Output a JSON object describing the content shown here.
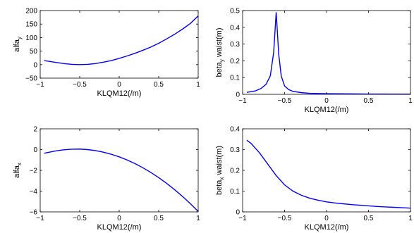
{
  "chart_data": [
    {
      "type": "line",
      "xlabel": "KLQM12(/m)",
      "ylabel_main": "alfa",
      "ylabel_sub": "y",
      "ylabel_suffix": "",
      "xlim": [
        -1,
        1
      ],
      "ylim": [
        -50,
        200
      ],
      "xticks": [
        -1,
        -0.5,
        0,
        0.5,
        1
      ],
      "xtick_labels": [
        "−1",
        "−0.5",
        "0",
        "0.5",
        "1"
      ],
      "yticks": [
        -50,
        0,
        50,
        100,
        150,
        200
      ],
      "ytick_labels": [
        "−50",
        "0",
        "50",
        "100",
        "150",
        "200"
      ],
      "series": [
        {
          "color": "#0000ff",
          "x": [
            -0.95,
            -0.8,
            -0.7,
            -0.6,
            -0.5,
            -0.4,
            -0.3,
            -0.2,
            -0.1,
            0.0,
            0.1,
            0.2,
            0.3,
            0.4,
            0.5,
            0.6,
            0.7,
            0.8,
            0.9,
            1.0
          ],
          "y": [
            15,
            8,
            4,
            1,
            0,
            1,
            4,
            9,
            15,
            23,
            32,
            42,
            53,
            65,
            79,
            95,
            112,
            131,
            152,
            180
          ]
        }
      ]
    },
    {
      "type": "line",
      "xlabel": "KLQM12(/m)",
      "ylabel_main": "beta",
      "ylabel_sub": "y",
      "ylabel_suffix": "waist(m)",
      "xlim": [
        -1,
        1
      ],
      "ylim": [
        0,
        0.5
      ],
      "xticks": [
        -1,
        -0.5,
        0,
        0.5,
        1
      ],
      "xtick_labels": [
        "−1",
        "−0.5",
        "0",
        "0.5",
        "1"
      ],
      "yticks": [
        0,
        0.1,
        0.2,
        0.3,
        0.4,
        0.5
      ],
      "ytick_labels": [
        "0",
        "0.1",
        "0.2",
        "0.3",
        "0.4",
        "0.5"
      ],
      "series": [
        {
          "color": "#0000ff",
          "x": [
            -0.95,
            -0.85,
            -0.78,
            -0.72,
            -0.67,
            -0.63,
            -0.6,
            -0.57,
            -0.54,
            -0.5,
            -0.45,
            -0.4,
            -0.3,
            -0.2,
            0.0,
            0.5,
            1.0
          ],
          "y": [
            0.012,
            0.02,
            0.035,
            0.06,
            0.11,
            0.25,
            0.49,
            0.24,
            0.11,
            0.05,
            0.028,
            0.018,
            0.01,
            0.006,
            0.004,
            0.002,
            0.001
          ]
        }
      ]
    },
    {
      "type": "line",
      "xlabel": "KLQM12(/m)",
      "ylabel_main": "alfa",
      "ylabel_sub": "x",
      "ylabel_suffix": "",
      "xlim": [
        -1,
        1
      ],
      "ylim": [
        -6,
        2
      ],
      "xticks": [
        -1,
        -0.5,
        0,
        0.5,
        1
      ],
      "xtick_labels": [
        "−1",
        "−0.5",
        "0",
        "0.5",
        "1"
      ],
      "yticks": [
        -6,
        -4,
        -2,
        0,
        2
      ],
      "ytick_labels": [
        "−6",
        "−4",
        "−2",
        "0",
        "2"
      ],
      "series": [
        {
          "color": "#0000ff",
          "x": [
            -0.95,
            -0.8,
            -0.7,
            -0.6,
            -0.5,
            -0.4,
            -0.3,
            -0.2,
            -0.1,
            0.0,
            0.1,
            0.2,
            0.3,
            0.4,
            0.5,
            0.6,
            0.7,
            0.8,
            0.9,
            1.0
          ],
          "y": [
            -0.35,
            -0.12,
            -0.02,
            0.04,
            0.05,
            0.0,
            -0.1,
            -0.25,
            -0.45,
            -0.7,
            -1.0,
            -1.35,
            -1.75,
            -2.2,
            -2.7,
            -3.25,
            -3.85,
            -4.5,
            -5.2,
            -5.95
          ]
        }
      ]
    },
    {
      "type": "line",
      "xlabel": "KLQM12(/m)",
      "ylabel_main": "beta",
      "ylabel_sub": "x",
      "ylabel_suffix": "waist(m)",
      "xlim": [
        -1,
        1
      ],
      "ylim": [
        0,
        0.4
      ],
      "xticks": [
        -1,
        -0.5,
        0,
        0.5,
        1
      ],
      "xtick_labels": [
        "−1",
        "−0.5",
        "0",
        "0.5",
        "1"
      ],
      "yticks": [
        0,
        0.1,
        0.2,
        0.3,
        0.4
      ],
      "ytick_labels": [
        "0",
        "0.1",
        "0.2",
        "0.3",
        "0.4"
      ],
      "series": [
        {
          "color": "#0000ff",
          "x": [
            -0.95,
            -0.9,
            -0.8,
            -0.7,
            -0.6,
            -0.5,
            -0.4,
            -0.3,
            -0.2,
            -0.1,
            0.0,
            0.1,
            0.2,
            0.3,
            0.4,
            0.5,
            0.6,
            0.7,
            0.8,
            0.9,
            1.0
          ],
          "y": [
            0.345,
            0.33,
            0.285,
            0.23,
            0.175,
            0.13,
            0.1,
            0.08,
            0.066,
            0.056,
            0.048,
            0.043,
            0.039,
            0.035,
            0.032,
            0.029,
            0.026,
            0.024,
            0.022,
            0.02,
            0.018
          ]
        }
      ]
    }
  ]
}
